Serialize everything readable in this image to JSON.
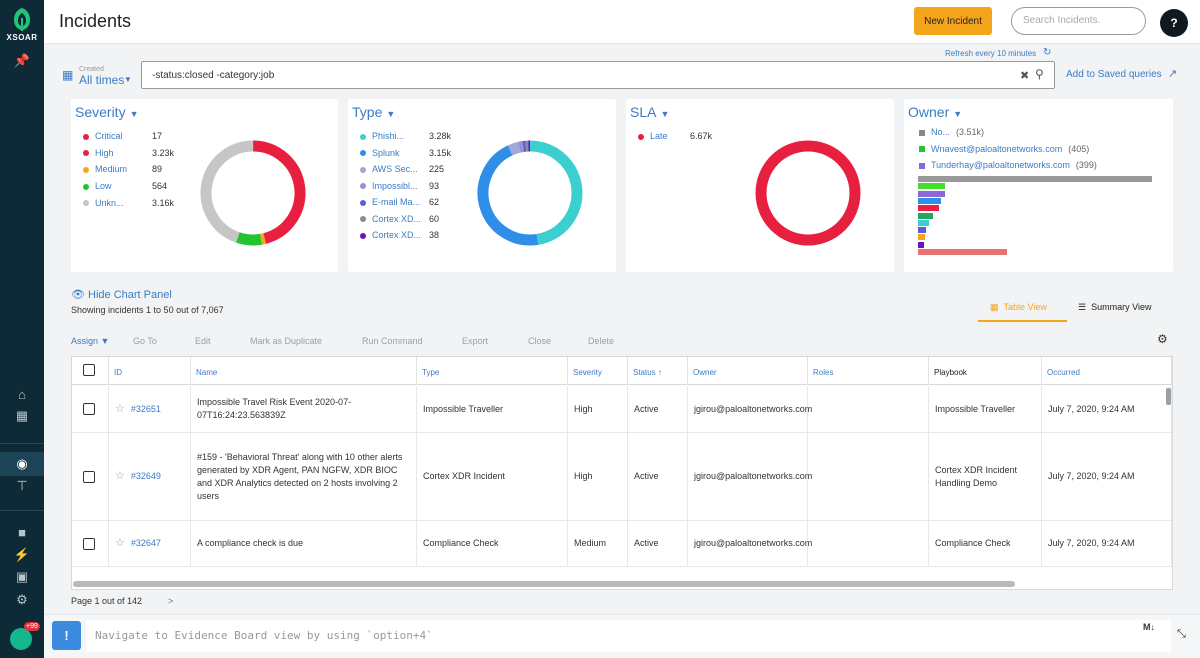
{
  "app": {
    "logo_text": "XSOAR",
    "notification_count": "+99"
  },
  "header": {
    "title": "Incidents",
    "new_incident_label": "New Incident",
    "search_placeholder": "Search Incidents.",
    "help_label": "?"
  },
  "refresh": {
    "text": "Refresh every 10 minutes"
  },
  "filter": {
    "created_label": "Created",
    "created_value": "All times",
    "query": "-status:closed -category:job",
    "add_to_label": "Add to",
    "saved_queries_label": "Saved queries"
  },
  "charts": {
    "severity": {
      "title": "Severity",
      "items": [
        {
          "label": "Critical",
          "value": "17",
          "color": "#e8203f"
        },
        {
          "label": "High",
          "value": "3.23k",
          "color": "#e8203f"
        },
        {
          "label": "Medium",
          "value": "89",
          "color": "#f5a51b"
        },
        {
          "label": "Low",
          "value": "564",
          "color": "#22c530"
        },
        {
          "label": "Unkn...",
          "value": "3.16k",
          "color": "#c6c6c6"
        }
      ]
    },
    "type": {
      "title": "Type",
      "items": [
        {
          "label": "Phishi...",
          "value": "3.28k",
          "color": "#3ccfcf"
        },
        {
          "label": "Splunk",
          "value": "3.15k",
          "color": "#2f8fe8"
        },
        {
          "label": "AWS Sec...",
          "value": "225",
          "color": "#a0a8d8"
        },
        {
          "label": "Impossibl...",
          "value": "93",
          "color": "#a08cd8"
        },
        {
          "label": "E-mail Ma...",
          "value": "62",
          "color": "#5a5fd8"
        },
        {
          "label": "Cortex XD...",
          "value": "60",
          "color": "#8a8a99"
        },
        {
          "label": "Cortex XD...",
          "value": "38",
          "color": "#6a11c8"
        }
      ]
    },
    "sla": {
      "title": "SLA",
      "items": [
        {
          "label": "Late",
          "value": "6.67k",
          "color": "#e8203f"
        }
      ]
    },
    "owner": {
      "title": "Owner",
      "items": [
        {
          "label": "No...",
          "value": "(3.51k)",
          "color": "#888888"
        },
        {
          "label": "Wnavest@paloaltonetworks.com",
          "value": "(405)",
          "color": "#22c530"
        },
        {
          "label": "Tunderhay@paloaltonetworks.com",
          "value": "(399)",
          "color": "#8a6ad8"
        }
      ],
      "bars": [
        {
          "fraction": 1.0,
          "color": "#999999"
        },
        {
          "fraction": 0.115,
          "color": "#44dd2c"
        },
        {
          "fraction": 0.114,
          "color": "#8a6ad8"
        },
        {
          "fraction": 0.1,
          "color": "#2f8fe8"
        },
        {
          "fraction": 0.09,
          "color": "#e8203f"
        },
        {
          "fraction": 0.065,
          "color": "#1fa85e"
        },
        {
          "fraction": 0.045,
          "color": "#3ccfcf"
        },
        {
          "fraction": 0.035,
          "color": "#5a5fd8"
        },
        {
          "fraction": 0.03,
          "color": "#f5a51b"
        },
        {
          "fraction": 0.025,
          "color": "#6a11c8"
        },
        {
          "fraction": 0.38,
          "color": "#e57373"
        }
      ]
    }
  },
  "chart_panel": {
    "toggle_label": "Hide Chart Panel",
    "showing_text": "Showing incidents 1 to 50 out of 7,067"
  },
  "views": {
    "table_label": "Table View",
    "summary_label": "Summary View"
  },
  "toolbar": {
    "assign": "Assign",
    "goto": "Go To",
    "edit": "Edit",
    "mark_duplicate": "Mark as Duplicate",
    "run_command": "Run Command",
    "export": "Export",
    "close": "Close",
    "delete": "Delete"
  },
  "table": {
    "columns": [
      "ID",
      "Name",
      "Type",
      "Severity",
      "Status",
      "Owner",
      "Roles",
      "Playbook",
      "Occurred"
    ],
    "rows": [
      {
        "id": "#32651",
        "name": "Impossible Travel Risk Event 2020-07-07T16:24:23.563839Z",
        "type": "Impossible Traveller",
        "severity": "High",
        "status": "Active",
        "owner": "jgirou@paloaltonetworks.com",
        "roles": "",
        "playbook": "Impossible Traveller",
        "occurred": "July 7, 2020, 9:24 AM"
      },
      {
        "id": "#32649",
        "name": "#159 - 'Behavioral Threat' along with 10 other alerts generated by XDR Agent, PAN NGFW, XDR BIOC and XDR Analytics detected on 2 hosts involving 2 users",
        "type": "Cortex XDR Incident",
        "severity": "High",
        "status": "Active",
        "owner": "jgirou@paloaltonetworks.com",
        "roles": "",
        "playbook": "Cortex XDR Incident Handling Demo",
        "occurred": "July 7, 2020, 9:24 AM"
      },
      {
        "id": "#32647",
        "name": "A compliance check is due",
        "type": "Compliance Check",
        "severity": "Medium",
        "status": "Active",
        "owner": "jgirou@paloaltonetworks.com",
        "roles": "",
        "playbook": "Compliance Check",
        "occurred": "July 7, 2020, 9:24 AM"
      }
    ]
  },
  "pager": {
    "text": "Page 1 out of 142",
    "next": ">"
  },
  "cli": {
    "placeholder": "Navigate to Evidence Board view by using `option+4`",
    "hint_icon": "!",
    "md_label": "M↓"
  }
}
